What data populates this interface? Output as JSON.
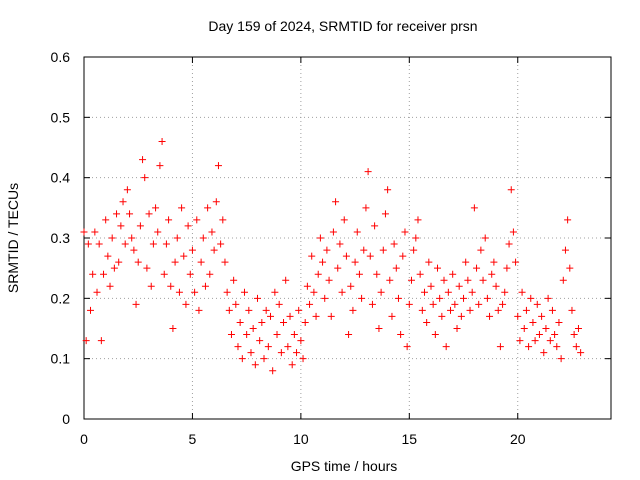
{
  "chart_data": {
    "type": "scatter",
    "title": "Day 159 of 2024, SRMTID for receiver prsn",
    "xlabel": "GPS time / hours",
    "ylabel": "SRMTID / TECUs",
    "xlim": [
      0,
      24.3
    ],
    "ylim": [
      0,
      0.6
    ],
    "xticks": [
      0,
      5,
      10,
      15,
      20
    ],
    "xtick_labels": [
      "0",
      "5",
      "10",
      "15",
      "20"
    ],
    "yticks": [
      0,
      0.1,
      0.2,
      0.3,
      0.4,
      0.5,
      0.6
    ],
    "ytick_labels": [
      "0",
      "0.1",
      "0.2",
      "0.3",
      "0.4",
      "0.5",
      "0.6"
    ],
    "grid": true,
    "marker": "+",
    "marker_color": "#ff0000",
    "series": [
      {
        "name": "SRMTID",
        "x": [
          0.0,
          0.1,
          0.2,
          0.3,
          0.4,
          0.5,
          0.6,
          0.7,
          0.8,
          0.9,
          1.0,
          1.1,
          1.2,
          1.3,
          1.4,
          1.5,
          1.6,
          1.7,
          1.8,
          1.9,
          2.0,
          2.1,
          2.2,
          2.3,
          2.4,
          2.5,
          2.6,
          2.7,
          2.8,
          2.9,
          3.0,
          3.1,
          3.2,
          3.3,
          3.4,
          3.5,
          3.6,
          3.7,
          3.8,
          3.9,
          4.0,
          4.1,
          4.2,
          4.3,
          4.4,
          4.5,
          4.6,
          4.7,
          4.8,
          4.9,
          5.0,
          5.1,
          5.2,
          5.3,
          5.4,
          5.5,
          5.6,
          5.7,
          5.8,
          5.9,
          6.0,
          6.1,
          6.2,
          6.3,
          6.4,
          6.5,
          6.6,
          6.7,
          6.8,
          6.9,
          7.0,
          7.1,
          7.2,
          7.3,
          7.4,
          7.5,
          7.6,
          7.7,
          7.8,
          7.9,
          8.0,
          8.1,
          8.2,
          8.3,
          8.4,
          8.5,
          8.6,
          8.7,
          8.8,
          8.9,
          9.0,
          9.1,
          9.2,
          9.3,
          9.4,
          9.5,
          9.6,
          9.7,
          9.8,
          9.9,
          10.0,
          10.1,
          10.2,
          10.3,
          10.4,
          10.5,
          10.6,
          10.7,
          10.8,
          10.9,
          11.0,
          11.1,
          11.2,
          11.3,
          11.4,
          11.5,
          11.6,
          11.7,
          11.8,
          11.9,
          12.0,
          12.1,
          12.2,
          12.3,
          12.4,
          12.5,
          12.6,
          12.7,
          12.8,
          12.9,
          13.0,
          13.1,
          13.2,
          13.3,
          13.4,
          13.5,
          13.6,
          13.7,
          13.8,
          13.9,
          14.0,
          14.1,
          14.2,
          14.3,
          14.4,
          14.5,
          14.6,
          14.7,
          14.8,
          14.9,
          15.0,
          15.1,
          15.2,
          15.3,
          15.4,
          15.5,
          15.6,
          15.7,
          15.8,
          15.9,
          16.0,
          16.1,
          16.2,
          16.3,
          16.4,
          16.5,
          16.6,
          16.7,
          16.8,
          16.9,
          17.0,
          17.1,
          17.2,
          17.3,
          17.4,
          17.5,
          17.6,
          17.7,
          17.8,
          17.9,
          18.0,
          18.1,
          18.2,
          18.3,
          18.4,
          18.5,
          18.6,
          18.7,
          18.8,
          18.9,
          19.0,
          19.1,
          19.2,
          19.3,
          19.4,
          19.5,
          19.6,
          19.7,
          19.8,
          19.9,
          20.0,
          20.1,
          20.2,
          20.3,
          20.4,
          20.5,
          20.6,
          20.7,
          20.8,
          20.9,
          21.0,
          21.1,
          21.2,
          21.3,
          21.4,
          21.5,
          21.6,
          21.7,
          21.8,
          21.9,
          22.0,
          22.1,
          22.2,
          22.3,
          22.4,
          22.5,
          22.6,
          22.7,
          22.8,
          22.9
        ],
        "y": [
          0.31,
          0.13,
          0.29,
          0.18,
          0.24,
          0.31,
          0.21,
          0.29,
          0.13,
          0.24,
          0.33,
          0.27,
          0.22,
          0.3,
          0.25,
          0.34,
          0.26,
          0.32,
          0.36,
          0.29,
          0.38,
          0.34,
          0.3,
          0.28,
          0.19,
          0.26,
          0.32,
          0.43,
          0.4,
          0.25,
          0.34,
          0.22,
          0.29,
          0.35,
          0.31,
          0.42,
          0.46,
          0.24,
          0.29,
          0.33,
          0.22,
          0.15,
          0.26,
          0.3,
          0.21,
          0.35,
          0.27,
          0.19,
          0.32,
          0.24,
          0.28,
          0.21,
          0.33,
          0.18,
          0.26,
          0.3,
          0.22,
          0.35,
          0.24,
          0.31,
          0.28,
          0.36,
          0.42,
          0.29,
          0.33,
          0.26,
          0.21,
          0.18,
          0.14,
          0.23,
          0.19,
          0.12,
          0.16,
          0.1,
          0.21,
          0.14,
          0.18,
          0.11,
          0.15,
          0.09,
          0.2,
          0.13,
          0.16,
          0.1,
          0.18,
          0.12,
          0.17,
          0.08,
          0.21,
          0.14,
          0.19,
          0.11,
          0.16,
          0.23,
          0.12,
          0.17,
          0.09,
          0.14,
          0.11,
          0.18,
          0.13,
          0.1,
          0.16,
          0.22,
          0.19,
          0.27,
          0.21,
          0.17,
          0.24,
          0.3,
          0.26,
          0.2,
          0.28,
          0.23,
          0.17,
          0.31,
          0.36,
          0.25,
          0.29,
          0.21,
          0.33,
          0.27,
          0.14,
          0.22,
          0.18,
          0.26,
          0.31,
          0.24,
          0.2,
          0.28,
          0.35,
          0.41,
          0.27,
          0.19,
          0.32,
          0.24,
          0.15,
          0.21,
          0.28,
          0.34,
          0.38,
          0.23,
          0.17,
          0.29,
          0.25,
          0.2,
          0.14,
          0.27,
          0.31,
          0.12,
          0.19,
          0.23,
          0.28,
          0.3,
          0.33,
          0.24,
          0.18,
          0.21,
          0.16,
          0.26,
          0.22,
          0.19,
          0.14,
          0.25,
          0.2,
          0.17,
          0.23,
          0.12,
          0.21,
          0.18,
          0.24,
          0.19,
          0.15,
          0.22,
          0.17,
          0.2,
          0.26,
          0.23,
          0.18,
          0.21,
          0.35,
          0.25,
          0.19,
          0.28,
          0.23,
          0.3,
          0.2,
          0.17,
          0.24,
          0.26,
          0.22,
          0.18,
          0.12,
          0.19,
          0.21,
          0.25,
          0.29,
          0.38,
          0.31,
          0.26,
          0.17,
          0.13,
          0.21,
          0.15,
          0.18,
          0.12,
          0.2,
          0.16,
          0.13,
          0.19,
          0.14,
          0.17,
          0.11,
          0.15,
          0.2,
          0.13,
          0.18,
          0.14,
          0.12,
          0.16,
          0.1,
          0.23,
          0.28,
          0.33,
          0.25,
          0.18,
          0.14,
          0.12,
          0.15,
          0.11
        ]
      }
    ]
  }
}
